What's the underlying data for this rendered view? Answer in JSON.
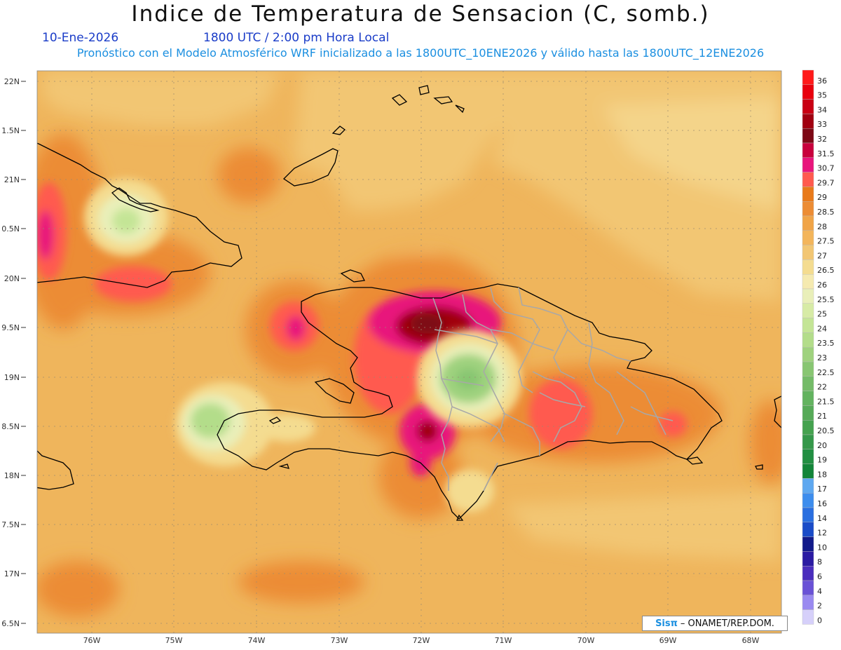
{
  "header": {
    "title": "Indice de Temperatura de Sensacion (C, somb.)",
    "date": "10-Ene-2026",
    "time": "1800 UTC / 2:00 pm Hora Local",
    "model_info": "Pronóstico con el Modelo Atmosférico WRF inicializado a las 1800UTC_10ENE2026 y válido hasta las  1800UTC_12ENE2026"
  },
  "map": {
    "lat_labels": [
      "22N",
      "1.5N",
      "21N",
      "0.5N",
      "20N",
      "9.5N",
      "19N",
      "8.5N",
      "18N",
      "7.5N",
      "17N",
      "6.5N"
    ],
    "lon_labels": [
      "76W",
      "75W",
      "74W",
      "73W",
      "72W",
      "71W",
      "70W",
      "69W",
      "68W"
    ],
    "base_color": "#efb55c"
  },
  "legend": {
    "levels": [
      "36",
      "35",
      "34",
      "33",
      "32",
      "31.5",
      "30.7",
      "29.7",
      "29",
      "28.5",
      "28",
      "27.5",
      "27",
      "26.5",
      "26",
      "25.5",
      "25",
      "24",
      "23.5",
      "23",
      "22.5",
      "22",
      "21.5",
      "21",
      "20.5",
      "20",
      "19",
      "18",
      "17",
      "16",
      "14",
      "12",
      "10",
      "8",
      "6",
      "4",
      "2",
      "0"
    ],
    "colors": [
      "#ff1a1a",
      "#e8000d",
      "#c90013",
      "#a10010",
      "#7d0815",
      "#c8003c",
      "#e8157c",
      "#ff5a4f",
      "#e87a1b",
      "#ec8c34",
      "#f0a447",
      "#f3b55b",
      "#f2c673",
      "#f4dc90",
      "#f5eab0",
      "#e9efb9",
      "#d7eba6",
      "#c4e596",
      "#b3dd8a",
      "#9fd27e",
      "#88c672",
      "#74bb68",
      "#63b35f",
      "#56aa57",
      "#45a24f",
      "#35984a",
      "#228f42",
      "#138539",
      "#5ea8f0",
      "#3d8ded",
      "#2a6fe0",
      "#1a4cc8",
      "#121a8a",
      "#2b1ba3",
      "#4a2dbd",
      "#6a52d6",
      "#9a8af0",
      "#d6d0fa"
    ]
  },
  "credit": {
    "logo": "Sisπ",
    "text": "– ONAMET/REP.DOM."
  }
}
